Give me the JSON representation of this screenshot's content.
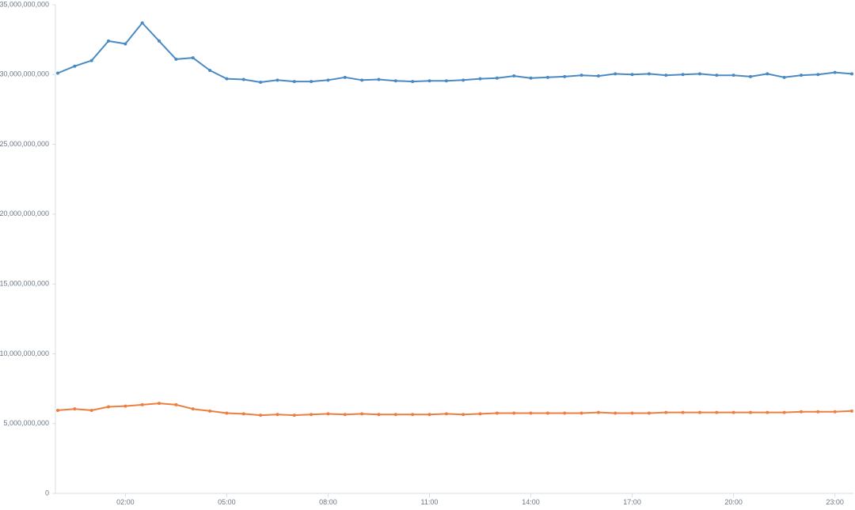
{
  "chart_data": {
    "type": "line",
    "title": "",
    "xlabel": "",
    "ylabel": "",
    "ylim": [
      0,
      35000000000
    ],
    "grid": false,
    "legend": "none",
    "y_ticks": [
      {
        "value": 0,
        "label": "0"
      },
      {
        "value": 5000000000,
        "label": "5,000,000,000"
      },
      {
        "value": 10000000000,
        "label": "10,000,000,000"
      },
      {
        "value": 15000000000,
        "label": "15,000,000,000"
      },
      {
        "value": 20000000000,
        "label": "20,000,000,000"
      },
      {
        "value": 25000000000,
        "label": "25,000,000,000"
      },
      {
        "value": 30000000000,
        "label": "30,000,000,000"
      },
      {
        "value": 35000000000,
        "label": "35,000,000,000"
      }
    ],
    "x_ticks": [
      {
        "value": 2,
        "label": "02:00"
      },
      {
        "value": 5,
        "label": "05:00"
      },
      {
        "value": 8,
        "label": "08:00"
      },
      {
        "value": 11,
        "label": "11:00"
      },
      {
        "value": 14,
        "label": "14:00"
      },
      {
        "value": 17,
        "label": "17:00"
      },
      {
        "value": 20,
        "label": "20:00"
      },
      {
        "value": 23,
        "label": "23:00"
      }
    ],
    "x_range_hours": [
      0,
      23.5
    ],
    "x": [
      "00:00",
      "00:30",
      "01:00",
      "01:30",
      "02:00",
      "02:30",
      "03:00",
      "03:30",
      "04:00",
      "04:30",
      "05:00",
      "05:30",
      "06:00",
      "06:30",
      "07:00",
      "07:30",
      "08:00",
      "08:30",
      "09:00",
      "09:30",
      "10:00",
      "10:30",
      "11:00",
      "11:30",
      "12:00",
      "12:30",
      "13:00",
      "13:30",
      "14:00",
      "14:30",
      "15:00",
      "15:30",
      "16:00",
      "16:30",
      "17:00",
      "17:30",
      "18:00",
      "18:30",
      "19:00",
      "19:30",
      "20:00",
      "20:30",
      "21:00",
      "21:30",
      "22:00",
      "22:30",
      "23:00",
      "23:30"
    ],
    "series": [
      {
        "color": "#4a8ac4",
        "values": [
          30100000000,
          30600000000,
          31000000000,
          32400000000,
          32200000000,
          33700000000,
          32400000000,
          31100000000,
          31200000000,
          30300000000,
          29700000000,
          29650000000,
          29450000000,
          29600000000,
          29500000000,
          29500000000,
          29600000000,
          29800000000,
          29600000000,
          29650000000,
          29550000000,
          29500000000,
          29550000000,
          29550000000,
          29600000000,
          29700000000,
          29750000000,
          29900000000,
          29750000000,
          29800000000,
          29850000000,
          29950000000,
          29900000000,
          30050000000,
          30000000000,
          30050000000,
          29950000000,
          30000000000,
          30050000000,
          29950000000,
          29950000000,
          29850000000,
          30050000000,
          29800000000,
          29950000000,
          30000000000,
          30150000000,
          30050000000
        ]
      },
      {
        "color": "#ec7f3f",
        "values": [
          5950000000,
          6050000000,
          5950000000,
          6200000000,
          6250000000,
          6350000000,
          6450000000,
          6350000000,
          6050000000,
          5900000000,
          5750000000,
          5700000000,
          5600000000,
          5650000000,
          5600000000,
          5650000000,
          5700000000,
          5650000000,
          5700000000,
          5650000000,
          5650000000,
          5650000000,
          5650000000,
          5700000000,
          5650000000,
          5700000000,
          5750000000,
          5750000000,
          5750000000,
          5750000000,
          5750000000,
          5750000000,
          5800000000,
          5750000000,
          5750000000,
          5750000000,
          5800000000,
          5800000000,
          5800000000,
          5800000000,
          5800000000,
          5800000000,
          5800000000,
          5800000000,
          5850000000,
          5850000000,
          5850000000,
          5900000000
        ]
      }
    ]
  }
}
